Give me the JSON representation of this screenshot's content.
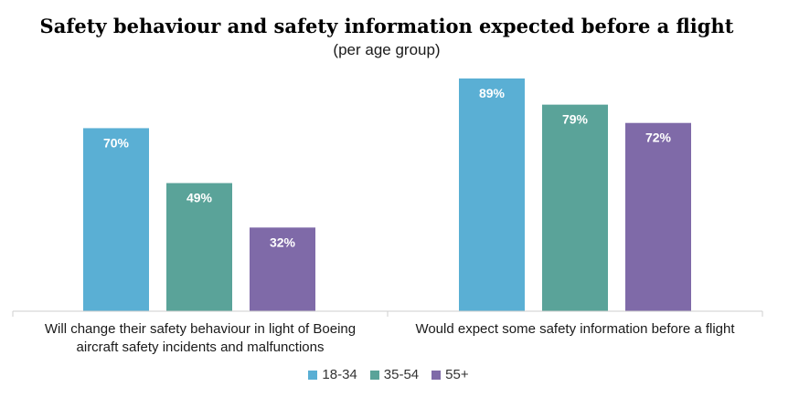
{
  "chart_data": {
    "type": "bar",
    "title": "Safety behaviour and safety information expected before a flight",
    "subtitle": "(per age group)",
    "categories": [
      [
        "Will change their safety behaviour in light of Boeing",
        "aircraft safety incidents and malfunctions"
      ],
      [
        "Would expect some safety information before a flight"
      ]
    ],
    "series": [
      {
        "name": "18-34",
        "color": "#5aafd4",
        "values": [
          70,
          89
        ],
        "labels": [
          "70%",
          "89%"
        ]
      },
      {
        "name": "35-54",
        "color": "#5aa399",
        "values": [
          49,
          79
        ],
        "labels": [
          "49%",
          "79%"
        ]
      },
      {
        "name": "55+",
        "color": "#7f6aa8",
        "values": [
          32,
          72
        ],
        "labels": [
          "32%",
          "72%"
        ]
      }
    ],
    "ylim": [
      0,
      89
    ],
    "grid": false,
    "legend": "bottom"
  }
}
